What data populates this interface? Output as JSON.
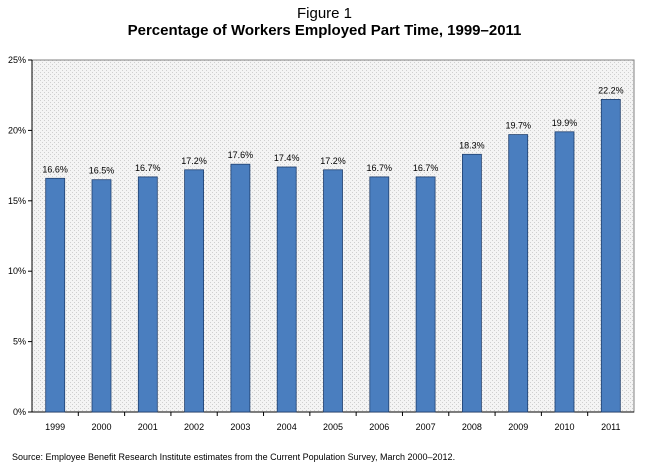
{
  "figure_label": "Figure 1",
  "title": "Percentage of Workers Employed Part Time, 1999–2011",
  "source": "Source: Employee Benefit Research Institute estimates from the Current Population Survey, March 2000–2012.",
  "colors": {
    "bar": "#4a7ebf",
    "bar_edge": "#1f3f6e",
    "plot_bg": "#f2f2f2"
  },
  "chart_data": {
    "type": "bar",
    "title": "Percentage of Workers Employed Part Time, 1999–2011",
    "xlabel": "",
    "ylabel": "",
    "categories": [
      "1999",
      "2000",
      "2001",
      "2002",
      "2003",
      "2004",
      "2005",
      "2006",
      "2007",
      "2008",
      "2009",
      "2010",
      "2011"
    ],
    "values": [
      16.6,
      16.5,
      16.7,
      17.2,
      17.6,
      17.4,
      17.2,
      16.7,
      16.7,
      18.3,
      19.7,
      19.9,
      22.2
    ],
    "data_labels": [
      "16.6%",
      "16.5%",
      "16.7%",
      "17.2%",
      "17.6%",
      "17.4%",
      "17.2%",
      "16.7%",
      "16.7%",
      "18.3%",
      "19.7%",
      "19.9%",
      "22.2%"
    ],
    "ylim": [
      0,
      25
    ],
    "yticks": [
      0,
      5,
      10,
      15,
      20,
      25
    ],
    "ytick_labels": [
      "0%",
      "5%",
      "10%",
      "15%",
      "20%",
      "25%"
    ],
    "grid": false,
    "legend": "none"
  }
}
